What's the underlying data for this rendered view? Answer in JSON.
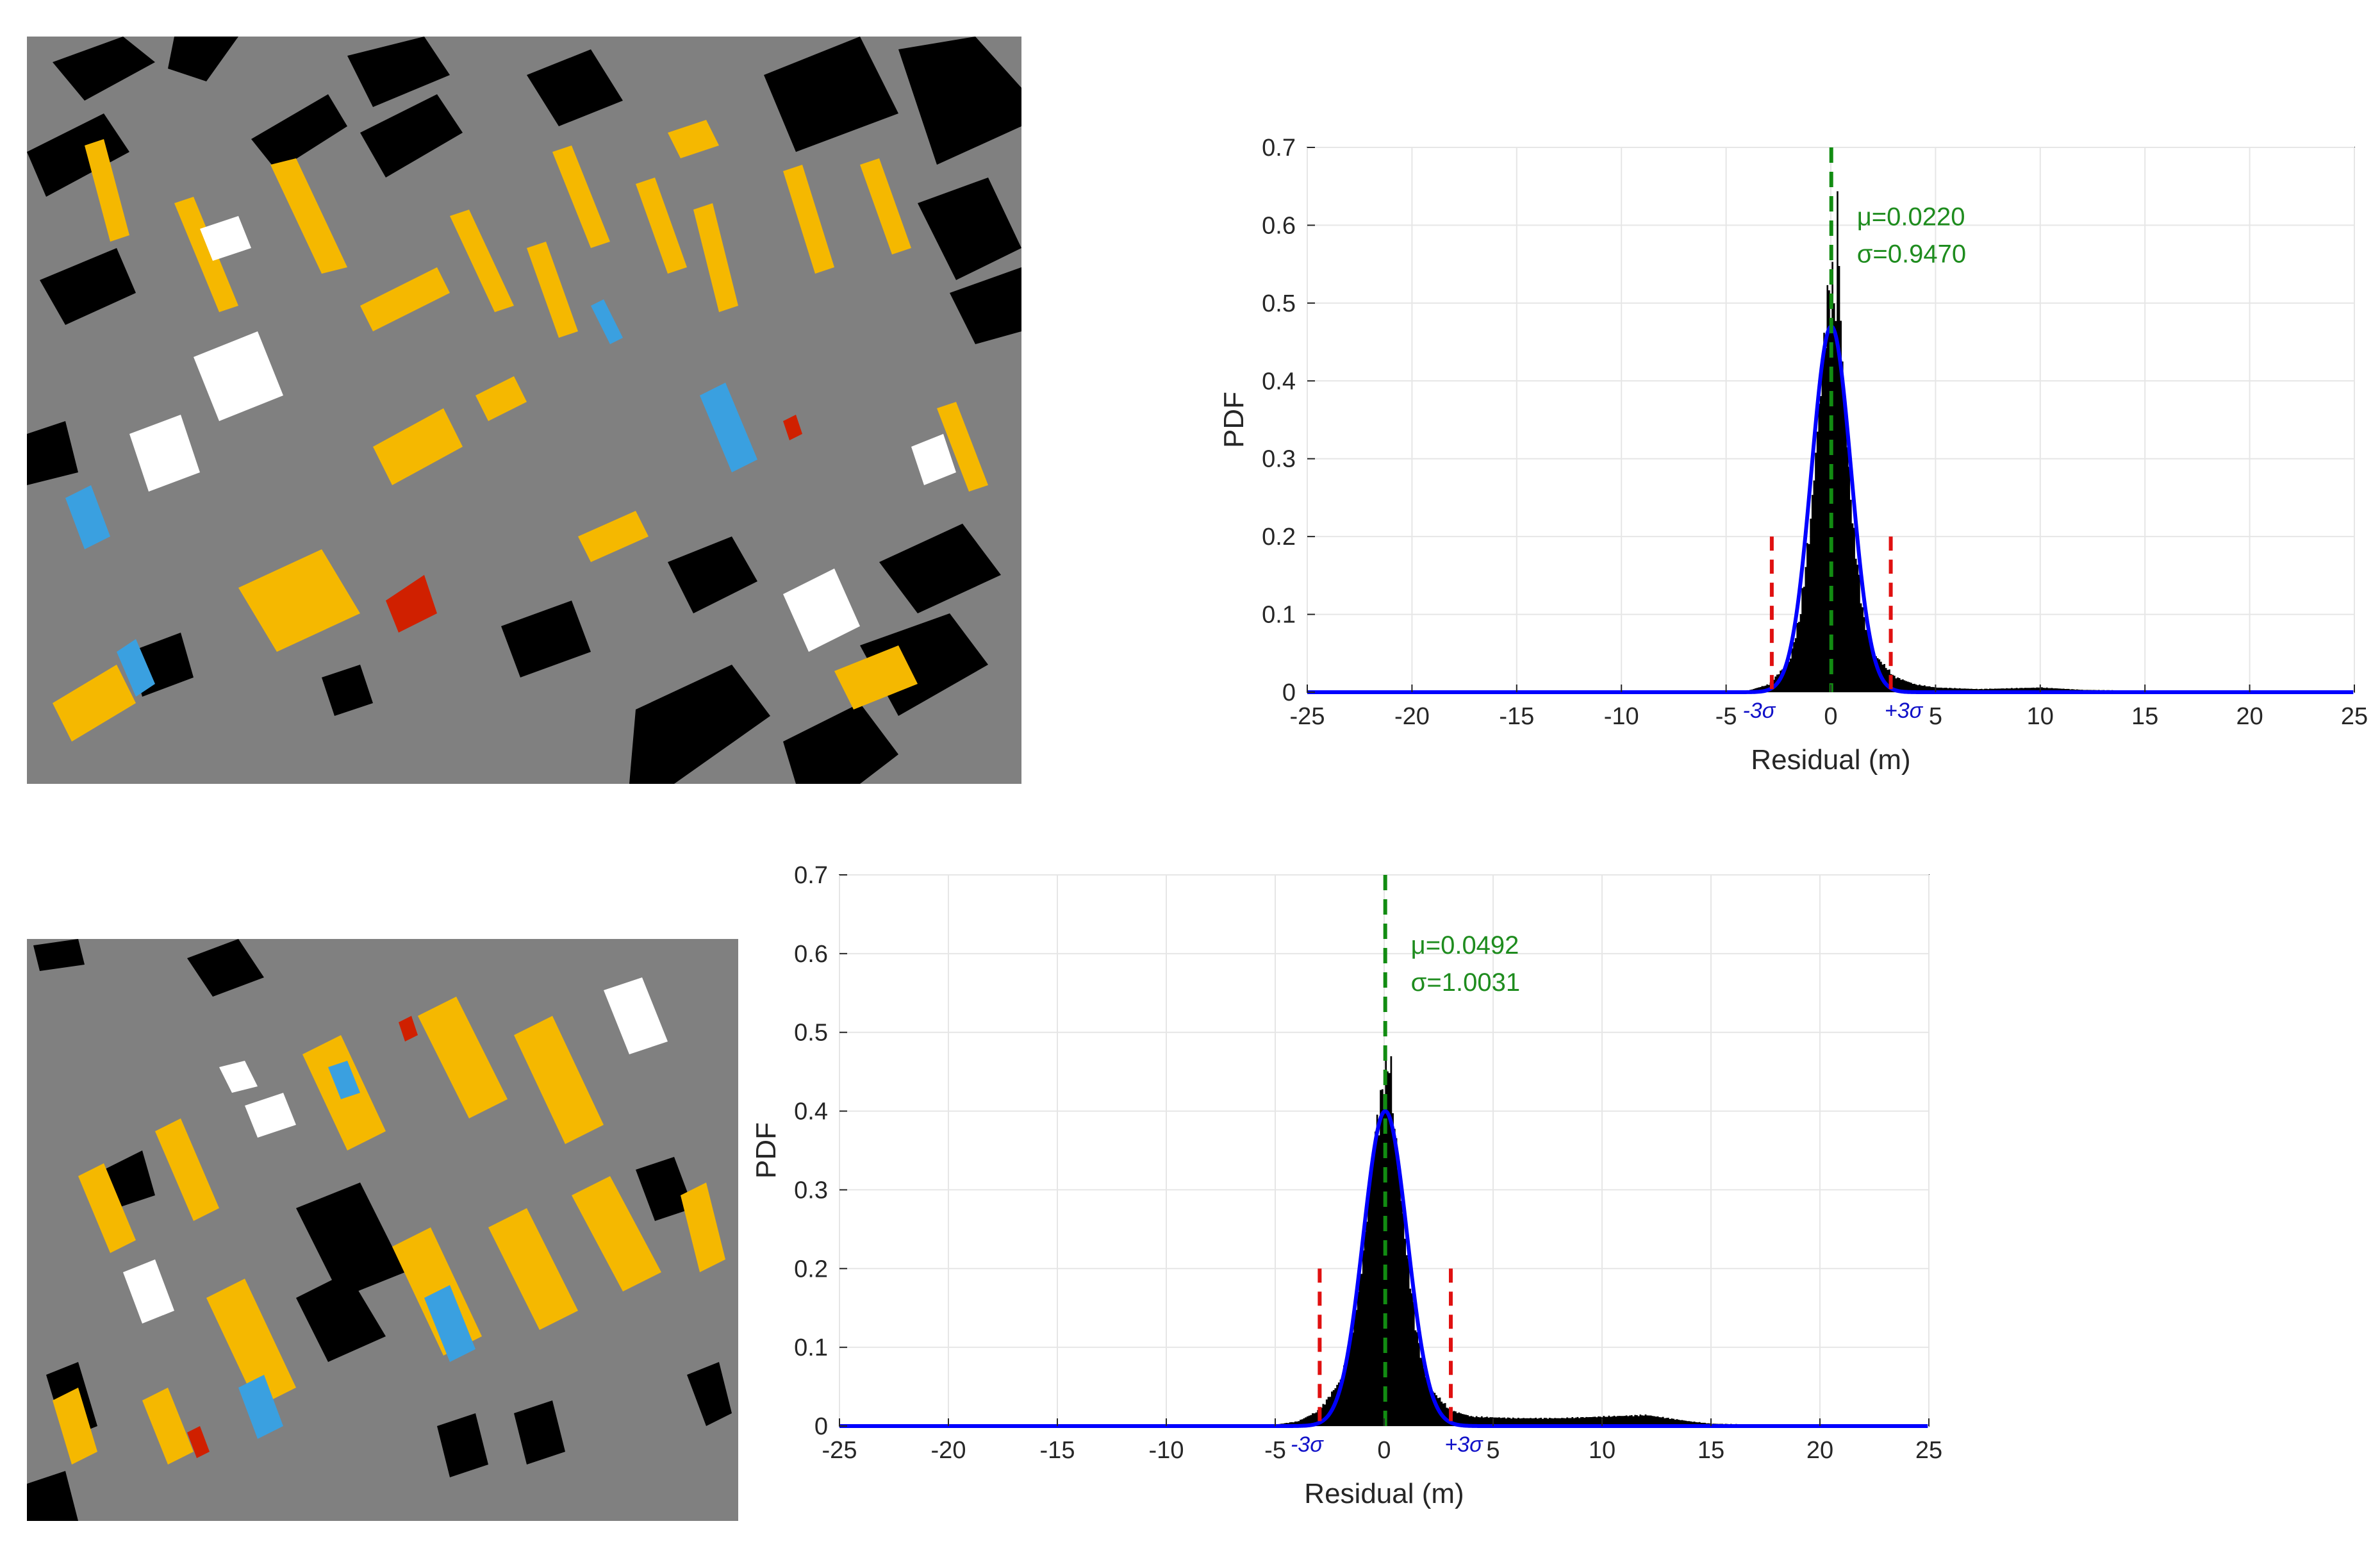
{
  "colors": {
    "map_background": "#808080",
    "building_black": "#000000",
    "roof_orange": "#f5b800",
    "roof_white": "#ffffff",
    "roof_blue": "#3aa0e0",
    "roof_red": "#d02000",
    "hist_fill": "#000000",
    "fit_curve": "#0000ff",
    "mean_line": "#128c12",
    "sigma_line": "#e01010",
    "sigma_text": "#1010c8",
    "stat_text": "#1e8c1e",
    "grid": "#e6e6e6"
  },
  "chart_data": [
    {
      "type": "histogram",
      "title": "",
      "xlabel": "Residual (m)",
      "ylabel": "PDF",
      "xlim": [
        -25,
        25
      ],
      "ylim": [
        0,
        0.7
      ],
      "xticks": [
        -25,
        -20,
        -15,
        -10,
        -5,
        0,
        5,
        10,
        15,
        20,
        25
      ],
      "yticks": [
        0,
        0.1,
        0.2,
        0.3,
        0.4,
        0.5,
        0.6,
        0.7
      ],
      "xtick_labels": [
        "-25",
        "-20",
        "-15",
        "-10",
        "-5",
        "0",
        "5",
        "10",
        "15",
        "20",
        "25"
      ],
      "ytick_labels": [
        "0",
        "0.1",
        "0.2",
        "0.3",
        "0.4",
        "0.5",
        "0.6",
        "0.7"
      ],
      "grid": true,
      "mean": 0.022,
      "sigma": 0.947,
      "mean_text": "μ=0.0220",
      "sigma_text": "σ=0.9470",
      "minus_3sigma_label": "-3σ",
      "plus_3sigma_label": "+3σ",
      "sigma_marker_height": 0.2,
      "hist_peak": 0.63,
      "fit_peak": 0.47,
      "hist_profile": [
        [
          -4,
          0.002
        ],
        [
          -3,
          0.01
        ],
        [
          -2,
          0.04
        ],
        [
          -1.5,
          0.1
        ],
        [
          -1,
          0.22
        ],
        [
          -0.5,
          0.4
        ],
        [
          -0.2,
          0.5
        ],
        [
          0,
          0.52
        ],
        [
          0.2,
          0.5
        ],
        [
          0.3,
          0.63
        ],
        [
          0.5,
          0.42
        ],
        [
          1,
          0.22
        ],
        [
          1.5,
          0.1
        ],
        [
          2,
          0.05
        ],
        [
          3,
          0.02
        ],
        [
          4,
          0.01
        ],
        [
          5,
          0.006
        ],
        [
          7,
          0.004
        ],
        [
          10,
          0.006
        ],
        [
          12,
          0.003
        ],
        [
          15,
          0.002
        ],
        [
          20,
          0.001
        ]
      ]
    },
    {
      "type": "histogram",
      "title": "",
      "xlabel": "Residual (m)",
      "ylabel": "PDF",
      "xlim": [
        -25,
        25
      ],
      "ylim": [
        0,
        0.7
      ],
      "xticks": [
        -25,
        -20,
        -15,
        -10,
        -5,
        0,
        5,
        10,
        15,
        20,
        25
      ],
      "yticks": [
        0,
        0.1,
        0.2,
        0.3,
        0.4,
        0.5,
        0.6,
        0.7
      ],
      "xtick_labels": [
        "-25",
        "-20",
        "-15",
        "-10",
        "-5",
        "0",
        "5",
        "10",
        "15",
        "20",
        "25"
      ],
      "ytick_labels": [
        "0",
        "0.1",
        "0.2",
        "0.3",
        "0.4",
        "0.5",
        "0.6",
        "0.7"
      ],
      "grid": true,
      "mean": 0.0492,
      "sigma": 1.0031,
      "mean_text": "μ=0.0492",
      "sigma_text": "σ=1.0031",
      "minus_3sigma_label": "-3σ",
      "plus_3sigma_label": "+3σ",
      "sigma_marker_height": 0.2,
      "hist_peak": 0.47,
      "fit_peak": 0.4,
      "hist_profile": [
        [
          -5,
          0.002
        ],
        [
          -4,
          0.006
        ],
        [
          -3,
          0.02
        ],
        [
          -2,
          0.06
        ],
        [
          -1.5,
          0.12
        ],
        [
          -1,
          0.22
        ],
        [
          -0.5,
          0.36
        ],
        [
          0,
          0.44
        ],
        [
          0.2,
          0.47
        ],
        [
          0.5,
          0.36
        ],
        [
          1,
          0.22
        ],
        [
          1.5,
          0.11
        ],
        [
          2,
          0.05
        ],
        [
          3,
          0.02
        ],
        [
          4,
          0.012
        ],
        [
          6,
          0.01
        ],
        [
          8,
          0.01
        ],
        [
          10,
          0.012
        ],
        [
          12,
          0.014
        ],
        [
          13,
          0.01
        ],
        [
          14,
          0.006
        ],
        [
          15,
          0.003
        ],
        [
          17,
          0.002
        ],
        [
          20,
          0.001
        ]
      ]
    }
  ]
}
